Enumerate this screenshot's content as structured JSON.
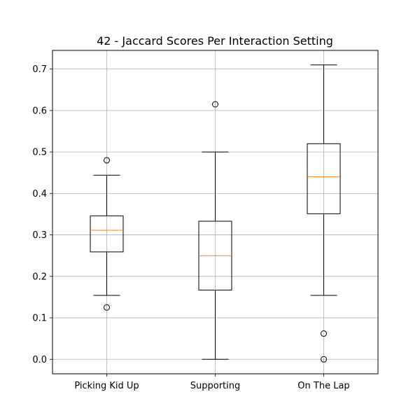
{
  "chart_data": {
    "type": "box",
    "title": "42 - Jaccard Scores Per Interaction Setting",
    "xlabel": "",
    "ylabel": "",
    "categories": [
      "Picking Kid Up",
      "Supporting",
      "On The Lap"
    ],
    "ylim": [
      -0.035,
      0.745
    ],
    "yticks": [
      0.0,
      0.1,
      0.2,
      0.3,
      0.4,
      0.5,
      0.6,
      0.7
    ],
    "ytick_labels": [
      "0.0",
      "0.1",
      "0.2",
      "0.3",
      "0.4",
      "0.5",
      "0.6",
      "0.7"
    ],
    "grid": true,
    "boxes": [
      {
        "category": "Picking Kid Up",
        "whisker_low": 0.154,
        "q1": 0.259,
        "median": 0.311,
        "q3": 0.346,
        "whisker_high": 0.444,
        "outliers": [
          0.48,
          0.125
        ]
      },
      {
        "category": "Supporting",
        "whisker_low": 0.0,
        "q1": 0.167,
        "median": 0.25,
        "q3": 0.333,
        "whisker_high": 0.5,
        "outliers": [
          0.615
        ]
      },
      {
        "category": "On The Lap",
        "whisker_low": 0.154,
        "q1": 0.351,
        "median": 0.44,
        "q3": 0.52,
        "whisker_high": 0.71,
        "outliers": [
          0.062,
          0.0
        ]
      }
    ],
    "colors": {
      "box": "#000000",
      "median": "#ff7f0e",
      "grid": "#b0b0b0",
      "outlier": "#000000"
    }
  }
}
